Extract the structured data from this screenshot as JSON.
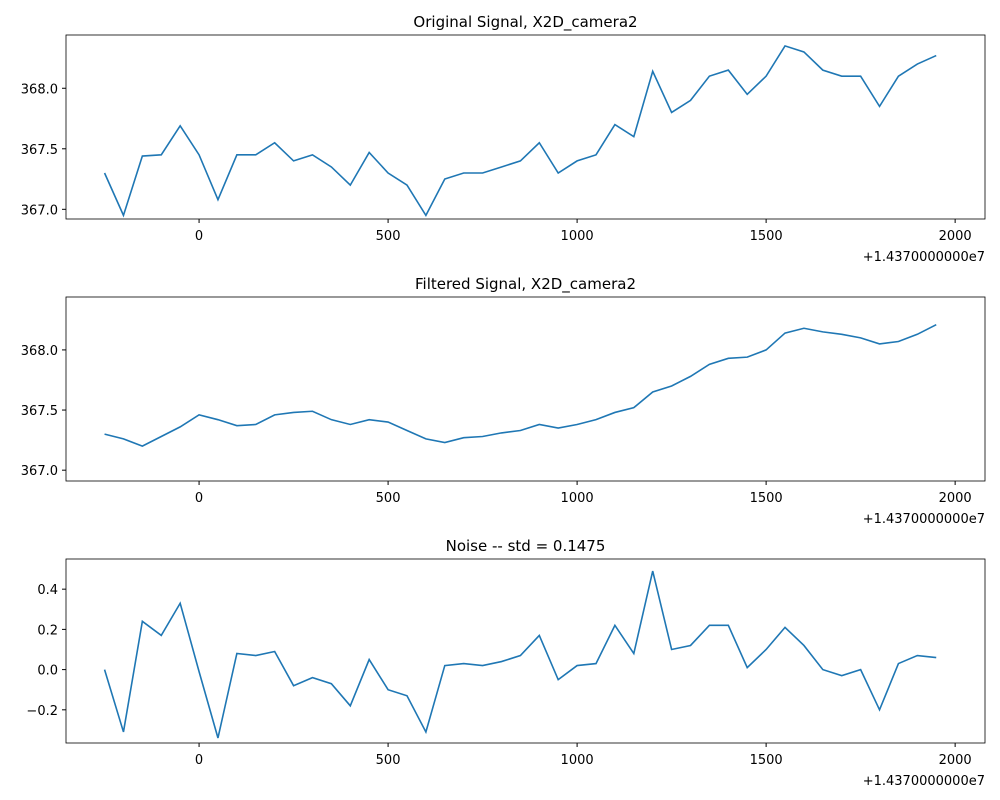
{
  "chart_data": [
    {
      "type": "line",
      "title": "Original Signal, X2D_camera2",
      "x_offset_label": "+1.4370000000e7",
      "x": [
        -250,
        -200,
        -150,
        -100,
        -50,
        0,
        50,
        100,
        150,
        200,
        250,
        300,
        350,
        400,
        450,
        500,
        550,
        600,
        650,
        700,
        750,
        800,
        850,
        900,
        950,
        1000,
        1050,
        1100,
        1150,
        1200,
        1250,
        1300,
        1350,
        1400,
        1450,
        1500,
        1550,
        1600,
        1650,
        1700,
        1750,
        1800,
        1850,
        1900,
        1950
      ],
      "series": [
        {
          "color": "#1f77b4",
          "values": [
            367.3,
            366.95,
            367.44,
            367.45,
            367.69,
            367.45,
            367.08,
            367.45,
            367.45,
            367.55,
            367.4,
            367.45,
            367.35,
            367.2,
            367.47,
            367.3,
            367.2,
            366.95,
            367.25,
            367.3,
            367.3,
            367.35,
            367.4,
            367.55,
            367.3,
            367.4,
            367.45,
            367.7,
            367.6,
            368.14,
            367.8,
            367.9,
            368.1,
            368.15,
            367.95,
            368.1,
            368.35,
            368.3,
            368.15,
            368.1,
            368.1,
            367.85,
            368.1,
            368.2,
            368.27
          ]
        }
      ],
      "xlim": [
        -352,
        2079
      ],
      "xticks": [
        0,
        500,
        1000,
        1500,
        2000
      ],
      "ylim": [
        366.92,
        368.44
      ],
      "yticks": [
        {
          "value": 367,
          "label": "367.0"
        },
        367.5,
        {
          "value": 368,
          "label": "368.0"
        }
      ]
    },
    {
      "type": "line",
      "title": "Filtered Signal, X2D_camera2",
      "x_offset_label": "+1.4370000000e7",
      "x": [
        -250,
        -200,
        -150,
        -100,
        -50,
        0,
        50,
        100,
        150,
        200,
        250,
        300,
        350,
        400,
        450,
        500,
        550,
        600,
        650,
        700,
        750,
        800,
        850,
        900,
        950,
        1000,
        1050,
        1100,
        1150,
        1200,
        1250,
        1300,
        1350,
        1400,
        1450,
        1500,
        1550,
        1600,
        1650,
        1700,
        1750,
        1800,
        1850,
        1900,
        1950
      ],
      "series": [
        {
          "color": "#1f77b4",
          "values": [
            367.3,
            367.26,
            367.2,
            367.28,
            367.36,
            367.46,
            367.42,
            367.37,
            367.38,
            367.46,
            367.48,
            367.49,
            367.42,
            367.38,
            367.42,
            367.4,
            367.33,
            367.26,
            367.23,
            367.27,
            367.28,
            367.31,
            367.33,
            367.38,
            367.35,
            367.38,
            367.42,
            367.48,
            367.52,
            367.65,
            367.7,
            367.78,
            367.88,
            367.93,
            367.94,
            368.0,
            368.14,
            368.18,
            368.15,
            368.13,
            368.1,
            368.05,
            368.07,
            368.13,
            368.21
          ]
        }
      ],
      "xlim": [
        -352,
        2079
      ],
      "xticks": [
        0,
        500,
        1000,
        1500,
        2000
      ],
      "ylim": [
        366.91,
        368.44
      ],
      "yticks": [
        {
          "value": 367,
          "label": "367.0"
        },
        367.5,
        {
          "value": 368,
          "label": "368.0"
        }
      ]
    },
    {
      "type": "line",
      "title": "Noise -- std = 0.1475",
      "x_offset_label": "+1.4370000000e7",
      "x": [
        -250,
        -200,
        -150,
        -100,
        -50,
        0,
        50,
        100,
        150,
        200,
        250,
        300,
        350,
        400,
        450,
        500,
        550,
        600,
        650,
        700,
        750,
        800,
        850,
        900,
        950,
        1000,
        1050,
        1100,
        1150,
        1200,
        1250,
        1300,
        1350,
        1400,
        1450,
        1500,
        1550,
        1600,
        1650,
        1700,
        1750,
        1800,
        1850,
        1900,
        1950
      ],
      "series": [
        {
          "color": "#1f77b4",
          "values": [
            0,
            -0.31,
            0.24,
            0.17,
            0.33,
            -0.01,
            -0.34,
            0.08,
            0.07,
            0.09,
            -0.08,
            -0.04,
            -0.07,
            -0.18,
            0.05,
            -0.1,
            -0.13,
            -0.31,
            0.02,
            0.03,
            0.02,
            0.04,
            0.07,
            0.17,
            -0.05,
            0.02,
            0.03,
            0.22,
            0.08,
            0.49,
            0.1,
            0.12,
            0.22,
            0.22,
            0.01,
            0.1,
            0.21,
            0.12,
            0.0,
            -0.03,
            0.0,
            -0.2,
            0.03,
            0.07,
            0.06
          ]
        }
      ],
      "xlim": [
        -352,
        2079
      ],
      "xticks": [
        0,
        500,
        1000,
        1500,
        2000
      ],
      "ylim": [
        -0.365,
        0.55
      ],
      "yticks": [
        {
          "value": -0.2,
          "label": "−0.2"
        },
        {
          "value": 0,
          "label": "0.0"
        },
        0.2,
        0.4
      ]
    }
  ]
}
